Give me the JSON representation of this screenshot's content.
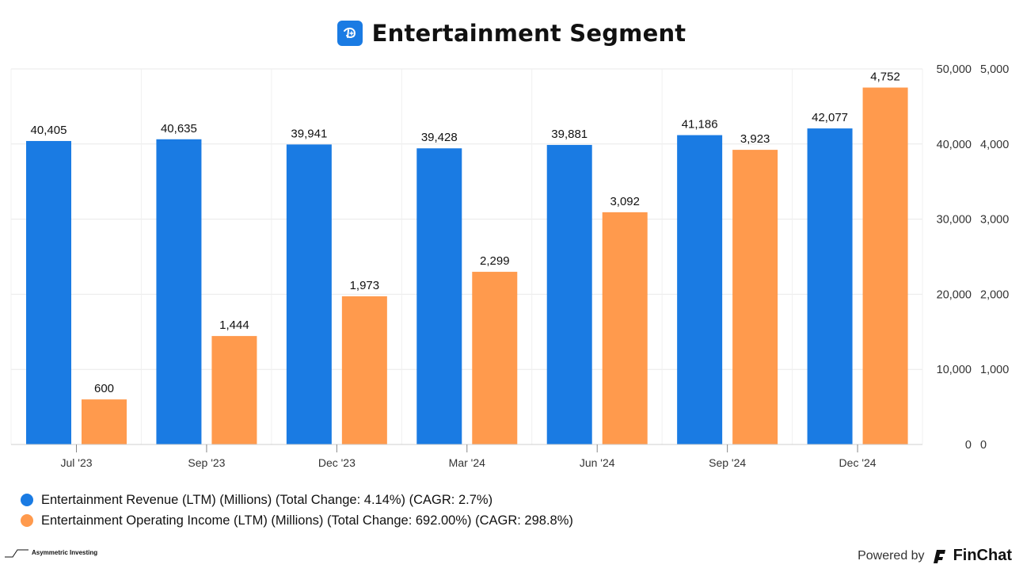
{
  "title": "Entertainment Segment",
  "chart_data": {
    "type": "bar",
    "categories": [
      "Jul '23",
      "Sep '23",
      "Dec '23",
      "Mar '24",
      "Jun '24",
      "Sep '24",
      "Dec '24"
    ],
    "series": [
      {
        "name": "Entertainment Revenue (LTM) (Millions) (Total Change: 4.14%) (CAGR: 2.7%)",
        "axis": "primary",
        "color": "#1a7be3",
        "values": [
          40405,
          40635,
          39941,
          39428,
          39881,
          41186,
          42077
        ],
        "labels": [
          "40,405",
          "40,635",
          "39,941",
          "39,428",
          "39,881",
          "41,186",
          "42,077"
        ]
      },
      {
        "name": "Entertainment Operating Income (LTM) (Millions) (Total Change: 692.00%) (CAGR: 298.8%)",
        "axis": "secondary",
        "color": "#ff9a4d",
        "values": [
          600,
          1444,
          1973,
          2299,
          3092,
          3923,
          4752
        ],
        "labels": [
          "600",
          "1,444",
          "1,973",
          "2,299",
          "3,092",
          "3,923",
          "4,752"
        ]
      }
    ],
    "ylim_primary": [
      0,
      50000
    ],
    "ylim_secondary": [
      0,
      5000
    ],
    "yticks_primary": [
      "0",
      "10,000",
      "20,000",
      "30,000",
      "40,000",
      "50,000"
    ],
    "yticks_secondary": [
      "0",
      "1,000",
      "2,000",
      "3,000",
      "4,000",
      "5,000"
    ],
    "grid": true,
    "legend_position": "bottom-left"
  },
  "legend": [
    {
      "label": "Entertainment Revenue (LTM) (Millions) (Total Change: 4.14%) (CAGR: 2.7%)",
      "color": "#1a7be3"
    },
    {
      "label": "Entertainment Operating Income (LTM) (Millions) (Total Change: 692.00%) (CAGR: 298.8%)",
      "color": "#ff9a4d"
    }
  ],
  "footer": {
    "credit": "Asymmetric Investing",
    "powered_by": "Powered by",
    "brand": "FinChat"
  }
}
